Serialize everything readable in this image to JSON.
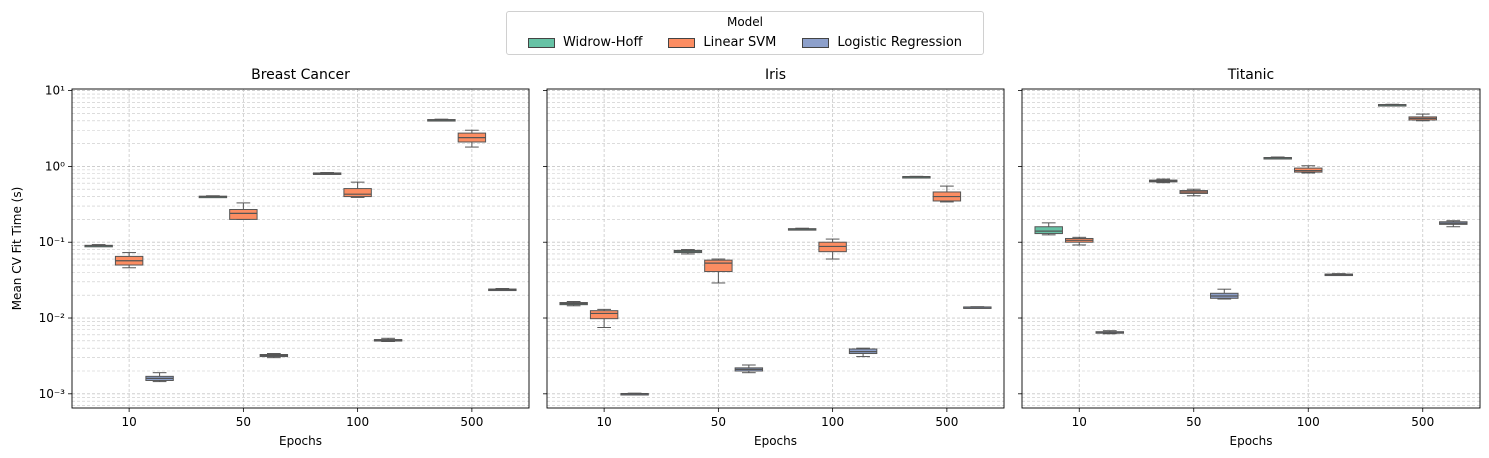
{
  "legend": {
    "title": "Model",
    "items": [
      {
        "label": "Widrow-Hoff",
        "color": "#66c2a5"
      },
      {
        "label": "Linear SVM",
        "color": "#fc8d62"
      },
      {
        "label": "Logistic Regression",
        "color": "#8da0cb"
      }
    ]
  },
  "chart_data": [
    {
      "type": "box",
      "title": "Breast Cancer",
      "xlabel": "Epochs",
      "ylabel": "Mean CV Fit Time (s)",
      "yscale": "log",
      "ylim": [
        0.00065,
        10.5
      ],
      "yticks": [
        0.001,
        0.01,
        0.1,
        1,
        10
      ],
      "yticklabels": [
        "10⁻³",
        "10⁻²",
        "10⁻¹",
        "10⁰",
        "10¹"
      ],
      "grid": true,
      "categories": [
        "10",
        "50",
        "100",
        "500"
      ],
      "series": [
        {
          "name": "Widrow-Hoff",
          "boxes": [
            {
              "min": 0.088,
              "q1": 0.089,
              "median": 0.09,
              "q3": 0.091,
              "max": 0.093
            },
            {
              "min": 0.39,
              "q1": 0.395,
              "median": 0.4,
              "q3": 0.405,
              "max": 0.41
            },
            {
              "min": 0.79,
              "q1": 0.8,
              "median": 0.81,
              "q3": 0.82,
              "max": 0.83
            },
            {
              "min": 4.0,
              "q1": 4.05,
              "median": 4.1,
              "q3": 4.15,
              "max": 4.2
            }
          ]
        },
        {
          "name": "Linear SVM",
          "boxes": [
            {
              "min": 0.046,
              "q1": 0.05,
              "median": 0.057,
              "q3": 0.065,
              "max": 0.073
            },
            {
              "min": 0.2,
              "q1": 0.2,
              "median": 0.24,
              "q3": 0.27,
              "max": 0.33
            },
            {
              "min": 0.39,
              "q1": 0.4,
              "median": 0.43,
              "q3": 0.51,
              "max": 0.62
            },
            {
              "min": 1.8,
              "q1": 2.1,
              "median": 2.4,
              "q3": 2.75,
              "max": 3.0
            }
          ]
        },
        {
          "name": "Logistic Regression",
          "boxes": [
            {
              "min": 0.00145,
              "q1": 0.0015,
              "median": 0.0016,
              "q3": 0.0017,
              "max": 0.0019
            },
            {
              "min": 0.003,
              "q1": 0.0031,
              "median": 0.0032,
              "q3": 0.0033,
              "max": 0.0034
            },
            {
              "min": 0.0049,
              "q1": 0.005,
              "median": 0.0051,
              "q3": 0.0052,
              "max": 0.0054
            },
            {
              "min": 0.0232,
              "q1": 0.0235,
              "median": 0.0238,
              "q3": 0.0241,
              "max": 0.0245
            }
          ]
        }
      ]
    },
    {
      "type": "box",
      "title": "Iris",
      "xlabel": "Epochs",
      "ylabel": "",
      "yscale": "log",
      "ylim": [
        0.00065,
        10.5
      ],
      "yticks": [
        0.001,
        0.01,
        0.1,
        1,
        10
      ],
      "yticklabels": [],
      "grid": true,
      "categories": [
        "10",
        "50",
        "100",
        "500"
      ],
      "series": [
        {
          "name": "Widrow-Hoff",
          "boxes": [
            {
              "min": 0.0145,
              "q1": 0.015,
              "median": 0.0155,
              "q3": 0.016,
              "max": 0.0165
            },
            {
              "min": 0.07,
              "q1": 0.073,
              "median": 0.076,
              "q3": 0.078,
              "max": 0.08
            },
            {
              "min": 0.145,
              "q1": 0.147,
              "median": 0.149,
              "q3": 0.151,
              "max": 0.153
            },
            {
              "min": 0.72,
              "q1": 0.725,
              "median": 0.73,
              "q3": 0.735,
              "max": 0.74
            }
          ]
        },
        {
          "name": "Linear SVM",
          "boxes": [
            {
              "min": 0.0075,
              "q1": 0.0098,
              "median": 0.0115,
              "q3": 0.0125,
              "max": 0.013
            },
            {
              "min": 0.029,
              "q1": 0.041,
              "median": 0.053,
              "q3": 0.058,
              "max": 0.06
            },
            {
              "min": 0.06,
              "q1": 0.075,
              "median": 0.088,
              "q3": 0.1,
              "max": 0.11
            },
            {
              "min": 0.34,
              "q1": 0.35,
              "median": 0.4,
              "q3": 0.46,
              "max": 0.55
            }
          ]
        },
        {
          "name": "Logistic Regression",
          "boxes": [
            {
              "min": 0.00098,
              "q1": 0.00099,
              "median": 0.001,
              "q3": 0.00101,
              "max": 0.00102
            },
            {
              "min": 0.0019,
              "q1": 0.002,
              "median": 0.0021,
              "q3": 0.0022,
              "max": 0.0024
            },
            {
              "min": 0.0031,
              "q1": 0.0034,
              "median": 0.0036,
              "q3": 0.0039,
              "max": 0.004
            },
            {
              "min": 0.0137,
              "q1": 0.0138,
              "median": 0.0139,
              "q3": 0.014,
              "max": 0.0141
            }
          ]
        }
      ]
    },
    {
      "type": "box",
      "title": "Titanic",
      "xlabel": "Epochs",
      "ylabel": "",
      "yscale": "log",
      "ylim": [
        0.00065,
        10.5
      ],
      "yticks": [
        0.001,
        0.01,
        0.1,
        1,
        10
      ],
      "yticklabels": [],
      "grid": true,
      "categories": [
        "10",
        "50",
        "100",
        "500"
      ],
      "series": [
        {
          "name": "Widrow-Hoff",
          "boxes": [
            {
              "min": 0.125,
              "q1": 0.13,
              "median": 0.14,
              "q3": 0.16,
              "max": 0.18
            },
            {
              "min": 0.61,
              "q1": 0.625,
              "median": 0.64,
              "q3": 0.66,
              "max": 0.68
            },
            {
              "min": 1.28,
              "q1": 1.29,
              "median": 1.3,
              "q3": 1.31,
              "max": 1.33
            },
            {
              "min": 6.4,
              "q1": 6.45,
              "median": 6.5,
              "q3": 6.55,
              "max": 6.6
            }
          ]
        },
        {
          "name": "Linear SVM",
          "boxes": [
            {
              "min": 0.092,
              "q1": 0.1,
              "median": 0.106,
              "q3": 0.112,
              "max": 0.116
            },
            {
              "min": 0.41,
              "q1": 0.44,
              "median": 0.46,
              "q3": 0.48,
              "max": 0.5
            },
            {
              "min": 0.82,
              "q1": 0.84,
              "median": 0.88,
              "q3": 0.95,
              "max": 1.02
            },
            {
              "min": 4.0,
              "q1": 4.1,
              "median": 4.3,
              "q3": 4.5,
              "max": 4.9
            }
          ]
        },
        {
          "name": "Logistic Regression",
          "boxes": [
            {
              "min": 0.0062,
              "q1": 0.0063,
              "median": 0.0064,
              "q3": 0.0066,
              "max": 0.0068
            },
            {
              "min": 0.0178,
              "q1": 0.0182,
              "median": 0.0195,
              "q3": 0.0212,
              "max": 0.024
            },
            {
              "min": 0.0365,
              "q1": 0.037,
              "median": 0.0375,
              "q3": 0.038,
              "max": 0.0385
            },
            {
              "min": 0.16,
              "q1": 0.172,
              "median": 0.178,
              "q3": 0.186,
              "max": 0.192
            }
          ]
        }
      ]
    }
  ]
}
